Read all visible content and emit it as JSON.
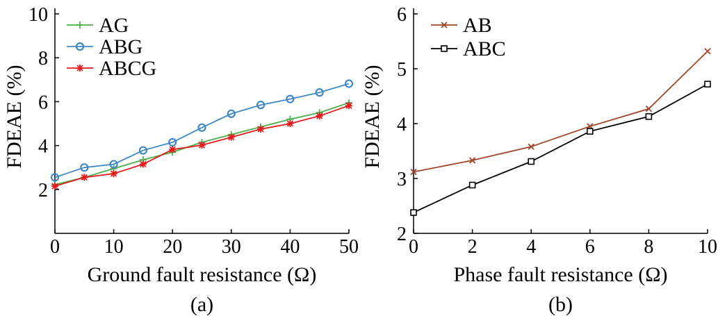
{
  "chart_data": [
    {
      "type": "line",
      "caption": "(a)",
      "xlabel": "Ground fault resistance (Ω)",
      "ylabel": "FDEAE (%)",
      "xlim": [
        0,
        50
      ],
      "ylim": [
        0,
        10
      ],
      "xticks": [
        "0",
        "10",
        "20",
        "30",
        "40",
        "50"
      ],
      "yticks": [
        "2",
        "4",
        "6",
        "8",
        "10"
      ],
      "ytick_values": [
        2,
        4,
        6,
        8,
        10
      ],
      "xtick_values": [
        0,
        10,
        20,
        30,
        40,
        50
      ],
      "legend_position": "top-left",
      "grid": false,
      "x": [
        0,
        5,
        10,
        15,
        20,
        25,
        30,
        35,
        40,
        45,
        50
      ],
      "series": [
        {
          "name": "AG",
          "color": "#4daf4a",
          "marker": "plus",
          "values": [
            2.22,
            2.55,
            2.95,
            3.35,
            3.7,
            4.15,
            4.5,
            4.85,
            5.2,
            5.5,
            5.95
          ]
        },
        {
          "name": "ABG",
          "color": "#3f88c5",
          "marker": "circle",
          "values": [
            2.55,
            3.0,
            3.15,
            3.78,
            4.15,
            4.82,
            5.45,
            5.85,
            6.12,
            6.42,
            6.82
          ]
        },
        {
          "name": "ABCG",
          "color": "#e41a1c",
          "marker": "star",
          "values": [
            2.15,
            2.55,
            2.72,
            3.15,
            3.82,
            4.02,
            4.38,
            4.75,
            5.0,
            5.35,
            5.82
          ]
        }
      ]
    },
    {
      "type": "line",
      "caption": "(b)",
      "xlabel": "Phase fault resistance (Ω)",
      "ylabel": "FDEAE (%)",
      "xlim": [
        0,
        10
      ],
      "ylim": [
        2,
        6
      ],
      "xticks": [
        "0",
        "2",
        "4",
        "6",
        "8",
        "10"
      ],
      "yticks": [
        "2",
        "3",
        "4",
        "5",
        "6"
      ],
      "ytick_values": [
        2,
        3,
        4,
        5,
        6
      ],
      "xtick_values": [
        0,
        2,
        4,
        6,
        8,
        10
      ],
      "legend_position": "top-left",
      "grid": false,
      "x": [
        0,
        2,
        4,
        6,
        8,
        10
      ],
      "series": [
        {
          "name": "AB",
          "color": "#a0442a",
          "marker": "x",
          "values": [
            3.12,
            3.33,
            3.58,
            3.95,
            4.27,
            5.32
          ]
        },
        {
          "name": "ABC",
          "color": "#000000",
          "marker": "square",
          "values": [
            2.38,
            2.88,
            3.31,
            3.86,
            4.13,
            4.72
          ]
        }
      ]
    }
  ]
}
